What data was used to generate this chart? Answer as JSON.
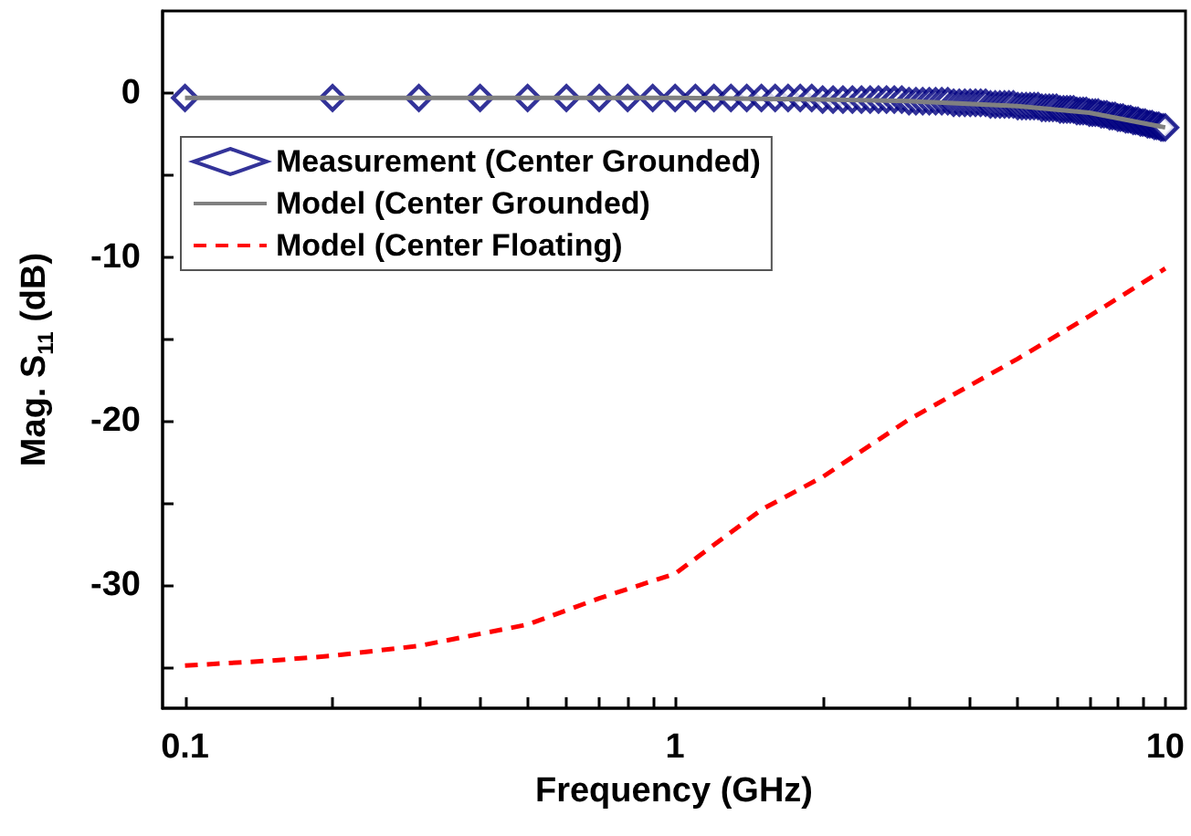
{
  "chart_data": {
    "type": "line",
    "xlabel": "Frequency (GHz)",
    "ylabel": "Mag. S$_{11}$ (dB)",
    "log": "x",
    "xlim": [
      0.09,
      11
    ],
    "xticks": [
      0.1,
      {
        "value": 0.2,
        "label": null
      },
      {
        "value": 0.3,
        "label": null
      },
      {
        "value": 0.4,
        "label": null
      },
      {
        "value": 0.5,
        "label": null
      },
      {
        "value": 0.6,
        "label": null
      },
      {
        "value": 0.7,
        "label": null
      },
      {
        "value": 0.8,
        "label": null
      },
      {
        "value": 0.9,
        "label": null
      },
      1,
      {
        "value": 2,
        "label": null
      },
      {
        "value": 3,
        "label": null
      },
      {
        "value": 4,
        "label": null
      },
      {
        "value": 5,
        "label": null
      },
      {
        "value": 6,
        "label": null
      },
      {
        "value": 7,
        "label": null
      },
      {
        "value": 8,
        "label": null
      },
      {
        "value": 9,
        "label": null
      },
      10
    ],
    "ylim": [
      -37.5,
      5
    ],
    "yticks": [
      {
        "value": -35,
        "label": null
      },
      -30,
      {
        "value": -25,
        "label": null
      },
      -20,
      {
        "value": -15,
        "label": null
      },
      -10,
      {
        "value": -5,
        "label": null
      },
      0
    ],
    "grid": false,
    "legend": "top left",
    "series": [
      {
        "name": "Measurement (Center Grounded)",
        "type": "scatter",
        "marker": "diamond",
        "color": "#000080",
        "x": [
          0.1,
          0.2,
          0.3,
          0.4,
          0.5,
          0.6,
          0.7,
          0.8,
          0.9,
          1.0,
          1.1,
          1.2,
          1.3,
          1.4,
          1.5,
          1.6,
          1.7,
          1.8,
          1.9,
          2.0,
          2.1,
          2.2,
          2.3,
          2.4,
          2.5,
          2.6,
          2.7,
          2.8,
          2.9,
          3.0,
          3.1,
          3.2,
          3.3,
          3.4,
          3.5,
          3.6,
          3.7,
          3.8,
          3.9,
          4.0,
          4.1,
          4.2,
          4.3,
          4.4,
          4.5,
          4.6,
          4.7,
          4.8,
          4.9,
          5.0,
          5.1,
          5.2,
          5.3,
          5.4,
          5.5,
          5.6,
          5.7,
          5.8,
          5.9,
          6.0,
          6.1,
          6.2,
          6.3,
          6.4,
          6.5,
          6.6,
          6.7,
          6.8,
          6.9,
          7.0,
          7.1,
          7.2,
          7.3,
          7.4,
          7.5,
          7.6,
          7.7,
          7.8,
          7.9,
          8.0,
          8.1,
          8.2,
          8.3,
          8.4,
          8.5,
          8.6,
          8.7,
          8.8,
          8.9,
          9.0,
          9.1,
          9.2,
          9.3,
          9.4,
          9.5,
          9.6,
          9.7,
          9.8,
          9.9,
          10.0
        ],
        "values": [
          -0.3,
          -0.3,
          -0.3,
          -0.3,
          -0.3,
          -0.3,
          -0.3,
          -0.3,
          -0.3,
          -0.3,
          -0.3,
          -0.3,
          -0.3,
          -0.3,
          -0.3,
          -0.3,
          -0.3,
          -0.3,
          -0.3,
          -0.4,
          -0.4,
          -0.4,
          -0.4,
          -0.4,
          -0.4,
          -0.4,
          -0.4,
          -0.4,
          -0.4,
          -0.5,
          -0.5,
          -0.5,
          -0.5,
          -0.5,
          -0.5,
          -0.5,
          -0.6,
          -0.6,
          -0.6,
          -0.6,
          -0.6,
          -0.6,
          -0.6,
          -0.7,
          -0.7,
          -0.7,
          -0.7,
          -0.7,
          -0.7,
          -0.8,
          -0.8,
          -0.8,
          -0.8,
          -0.8,
          -0.8,
          -0.9,
          -0.9,
          -0.9,
          -0.9,
          -0.9,
          -1.0,
          -1.0,
          -1.0,
          -1.0,
          -1.0,
          -1.1,
          -1.1,
          -1.1,
          -1.1,
          -1.2,
          -1.2,
          -1.2,
          -1.2,
          -1.3,
          -1.3,
          -1.3,
          -1.4,
          -1.4,
          -1.4,
          -1.5,
          -1.5,
          -1.5,
          -1.6,
          -1.6,
          -1.6,
          -1.7,
          -1.7,
          -1.7,
          -1.8,
          -1.8,
          -1.8,
          -1.9,
          -1.9,
          -1.9,
          -2.0,
          -2.0,
          -2.0,
          -2.1,
          -2.1,
          -2.1
        ]
      },
      {
        "name": "Model (Center Grounded)",
        "type": "line",
        "marker": "none",
        "line_style": "solid",
        "color": "#808080",
        "x": [
          0.1,
          1,
          2,
          3,
          5,
          7,
          10
        ],
        "values": [
          -0.3,
          -0.3,
          -0.4,
          -0.5,
          -0.8,
          -1.2,
          -2.1
        ]
      },
      {
        "name": "Model (Center Floating)",
        "type": "line",
        "marker": "none",
        "line_style": "dashed",
        "color": "#ff0000",
        "x": [
          0.1,
          0.15,
          0.2,
          0.3,
          0.5,
          0.7,
          1,
          1.5,
          2,
          3,
          5,
          7,
          10
        ],
        "values": [
          -34.9,
          -34.6,
          -34.3,
          -33.7,
          -32.4,
          -30.8,
          -29.3,
          -25.4,
          -23.4,
          -19.9,
          -16.2,
          -13.6,
          -10.7
        ]
      }
    ]
  }
}
